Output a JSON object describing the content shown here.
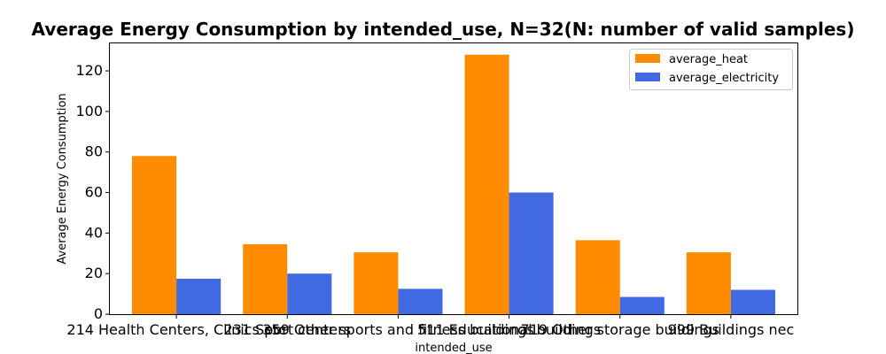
{
  "chart_data": {
    "type": "bar",
    "title": "Average Energy Consumption by intended_use, N=32(N: number of valid samples)",
    "xlabel": "intended_use",
    "ylabel": "Average Energy Consumption",
    "categories": [
      "214 Health Centers, Clinics etc",
      "231 Sport centers",
      "359 Other sports and fitness buildings",
      "511 Educational buildings",
      "719 Other storage buildings",
      "999 Buildings nec"
    ],
    "series": [
      {
        "name": "average_heat",
        "color": "#FF8C00",
        "values": [
          78,
          34.5,
          30.5,
          128,
          36.5,
          30.5
        ]
      },
      {
        "name": "average_electricity",
        "color": "#4169E1",
        "values": [
          17.5,
          20,
          12.5,
          60,
          8.5,
          12
        ]
      }
    ],
    "ylim": [
      0,
      134
    ],
    "yticks": [
      0,
      20,
      40,
      60,
      80,
      100,
      120
    ],
    "legend_position": "top-right",
    "grid": false
  }
}
